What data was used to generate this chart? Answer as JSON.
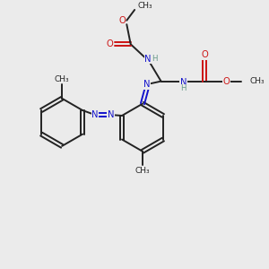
{
  "background_color": "#ebebeb",
  "bond_color": "#222222",
  "n_color": "#1414cc",
  "o_color": "#cc1414",
  "h_color": "#669988",
  "c_color": "#222222",
  "figsize": [
    3.0,
    3.0
  ],
  "dpi": 100,
  "xlim": [
    0,
    10
  ],
  "ylim": [
    0,
    10
  ]
}
